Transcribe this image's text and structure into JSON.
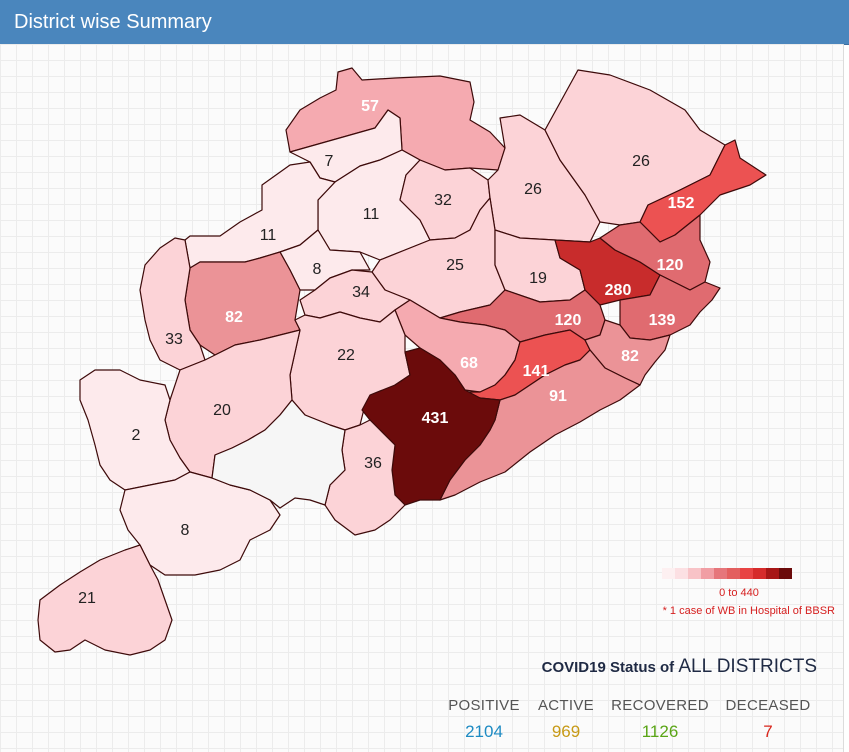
{
  "header": {
    "title": "District wise Summary"
  },
  "map": {
    "fill_scale": [
      "#fdeaec",
      "#fcd3d7",
      "#f5aab0",
      "#eb9397",
      "#e06b70",
      "#ec5252",
      "#c82c2c",
      "#6b0b0b"
    ],
    "district_values": [
      "57",
      "7",
      "11",
      "32",
      "26",
      "26",
      "152",
      "11",
      "8",
      "25",
      "19",
      "280",
      "120",
      "82",
      "33",
      "34",
      "120",
      "139",
      "68",
      "141",
      "82",
      "22",
      "91",
      "20",
      "431",
      "2",
      "36",
      "8",
      "21"
    ],
    "unlabeled_district_color": "#f6f6f6"
  },
  "legend": {
    "swatches": [
      "#fdf0f1",
      "#fce0e3",
      "#f8c3c7",
      "#f19ea4",
      "#e6767b",
      "#e35f5f",
      "#e84444",
      "#d62b2b",
      "#a71616",
      "#6b0b0b"
    ],
    "range_text": "0 to 440",
    "note": "* 1 case of WB in Hospital of BBSR"
  },
  "status": {
    "prefix": "COVID19 Status of ",
    "scope": "ALL DISTRICTS"
  },
  "stats": [
    {
      "label": "POSITIVE",
      "value": "2104",
      "color": "#1e8bc3"
    },
    {
      "label": "ACTIVE",
      "value": "969",
      "color": "#c79a16"
    },
    {
      "label": "RECOVERED",
      "value": "1126",
      "color": "#5aa516"
    },
    {
      "label": "DECEASED",
      "value": "7",
      "color": "#d9261c"
    }
  ]
}
